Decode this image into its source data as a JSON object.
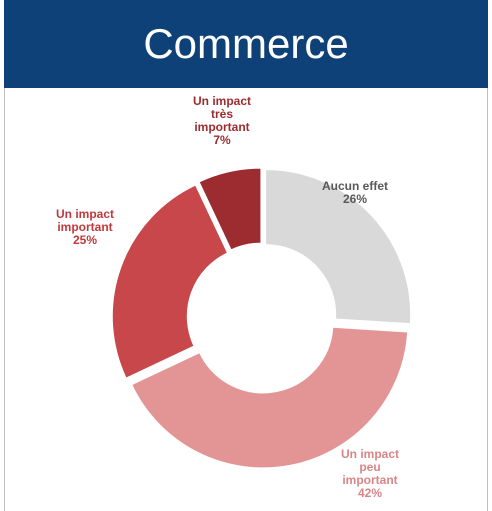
{
  "chart_data": {
    "type": "pie",
    "title": "Commerce",
    "categories": [
      "Aucun effet",
      "Un impact peu important",
      "Un impact important",
      "Un impact très important"
    ],
    "values": [
      26,
      42,
      25,
      7
    ],
    "value_labels": [
      "26%",
      "42%",
      "25%",
      "7%"
    ],
    "colors": [
      "#d9d9d9",
      "#e39596",
      "#c8474a",
      "#9c2c2f"
    ],
    "label_colors": [
      "#595959",
      "#d98587",
      "#c0393c",
      "#9c2c2f"
    ]
  }
}
